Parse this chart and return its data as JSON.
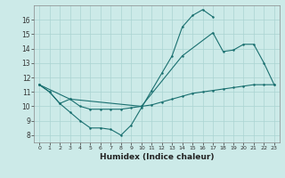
{
  "xlabel": "Humidex (Indice chaleur)",
  "bg_color": "#cceae8",
  "line_color": "#1a7070",
  "grid_color": "#aad4d2",
  "xlim": [
    -0.5,
    23.5
  ],
  "ylim": [
    7.5,
    17.0
  ],
  "xticks": [
    0,
    1,
    2,
    3,
    4,
    5,
    6,
    7,
    8,
    9,
    10,
    11,
    12,
    13,
    14,
    15,
    16,
    17,
    18,
    19,
    20,
    21,
    22,
    23
  ],
  "yticks": [
    8,
    9,
    10,
    11,
    12,
    13,
    14,
    15,
    16
  ],
  "line1_x": [
    0,
    1,
    2,
    3,
    4,
    5,
    6,
    7,
    8,
    9,
    10,
    11,
    12,
    13,
    14,
    15,
    16,
    17
  ],
  "line1_y": [
    11.5,
    11.0,
    10.2,
    9.6,
    9.0,
    8.5,
    8.5,
    8.4,
    8.0,
    8.7,
    9.9,
    11.1,
    12.3,
    13.5,
    15.5,
    16.3,
    16.7,
    16.2
  ],
  "line2_x": [
    0,
    1,
    2,
    3,
    4,
    5,
    6,
    7,
    8,
    9,
    10,
    11,
    12,
    13,
    14,
    15,
    16,
    17,
    18,
    19,
    20,
    21,
    22,
    23
  ],
  "line2_y": [
    11.5,
    11.0,
    10.2,
    10.5,
    10.0,
    9.8,
    9.8,
    9.8,
    9.8,
    9.9,
    10.0,
    10.1,
    10.3,
    10.5,
    10.7,
    10.9,
    11.0,
    11.1,
    11.2,
    11.3,
    11.4,
    11.5,
    11.5,
    11.5
  ],
  "line3_x": [
    0,
    3,
    10,
    14,
    17,
    18,
    19,
    20,
    21,
    22,
    23
  ],
  "line3_y": [
    11.5,
    10.5,
    10.0,
    13.5,
    15.1,
    13.8,
    13.9,
    14.3,
    14.3,
    13.0,
    11.5
  ]
}
